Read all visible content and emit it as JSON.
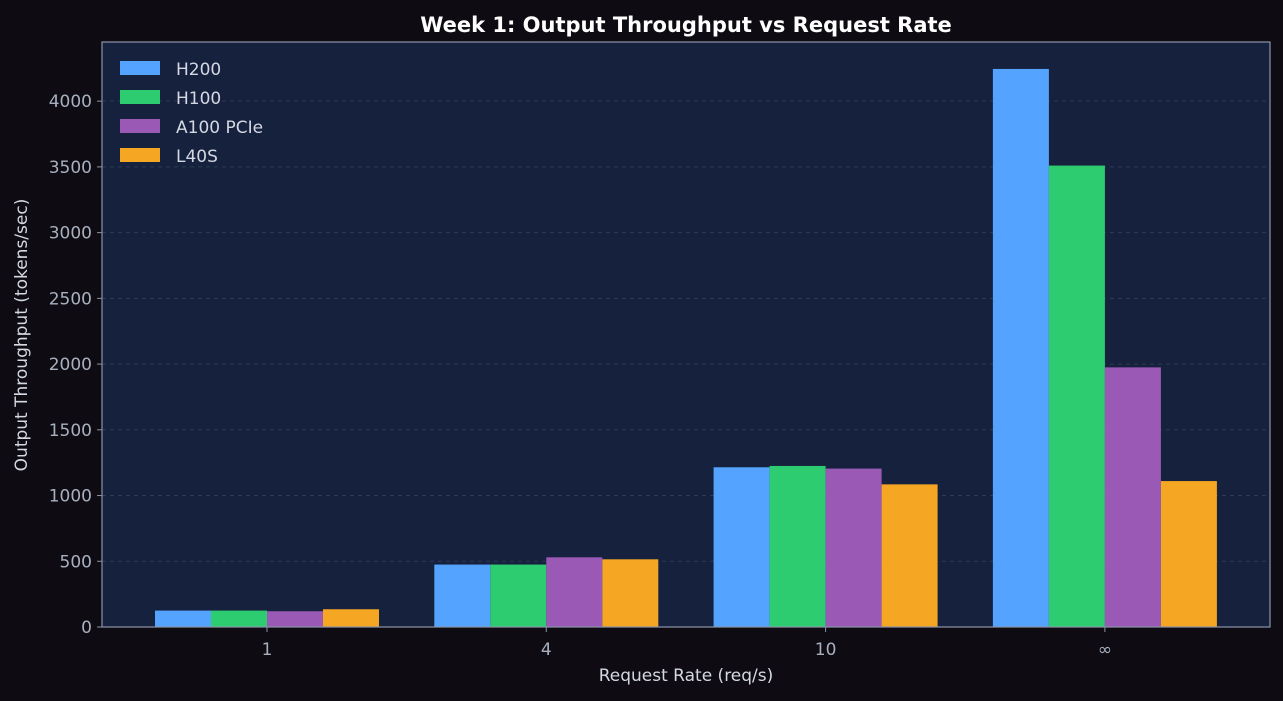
{
  "chart_data": {
    "type": "bar",
    "title": "Week 1: Output Throughput vs Request Rate",
    "xlabel": "Request Rate (req/s)",
    "ylabel": "Output Throughput (tokens/sec)",
    "categories": [
      "1",
      "4",
      "10",
      "∞"
    ],
    "ylim": [
      0,
      4450
    ],
    "yticks": [
      0,
      500,
      1000,
      1500,
      2000,
      2500,
      3000,
      3500,
      4000
    ],
    "grid": true,
    "legend_position": "top-left",
    "series": [
      {
        "name": "H200",
        "color": "#54a3ff",
        "values": [
          125,
          475,
          1215,
          4245
        ]
      },
      {
        "name": "H100",
        "color": "#2ecc71",
        "values": [
          125,
          475,
          1225,
          3510
        ]
      },
      {
        "name": "A100 PCIe",
        "color": "#9b59b6",
        "values": [
          120,
          530,
          1205,
          1975
        ]
      },
      {
        "name": "L40S",
        "color": "#f5a623",
        "values": [
          135,
          515,
          1085,
          1110
        ]
      }
    ]
  },
  "colors": {
    "page_background": "#0e0c12",
    "plot_background": "#16213e",
    "axis": "#8a94a8",
    "text": "#d4d8e2",
    "tick_text": "#a8b0c0",
    "grid": "#3a4560"
  }
}
